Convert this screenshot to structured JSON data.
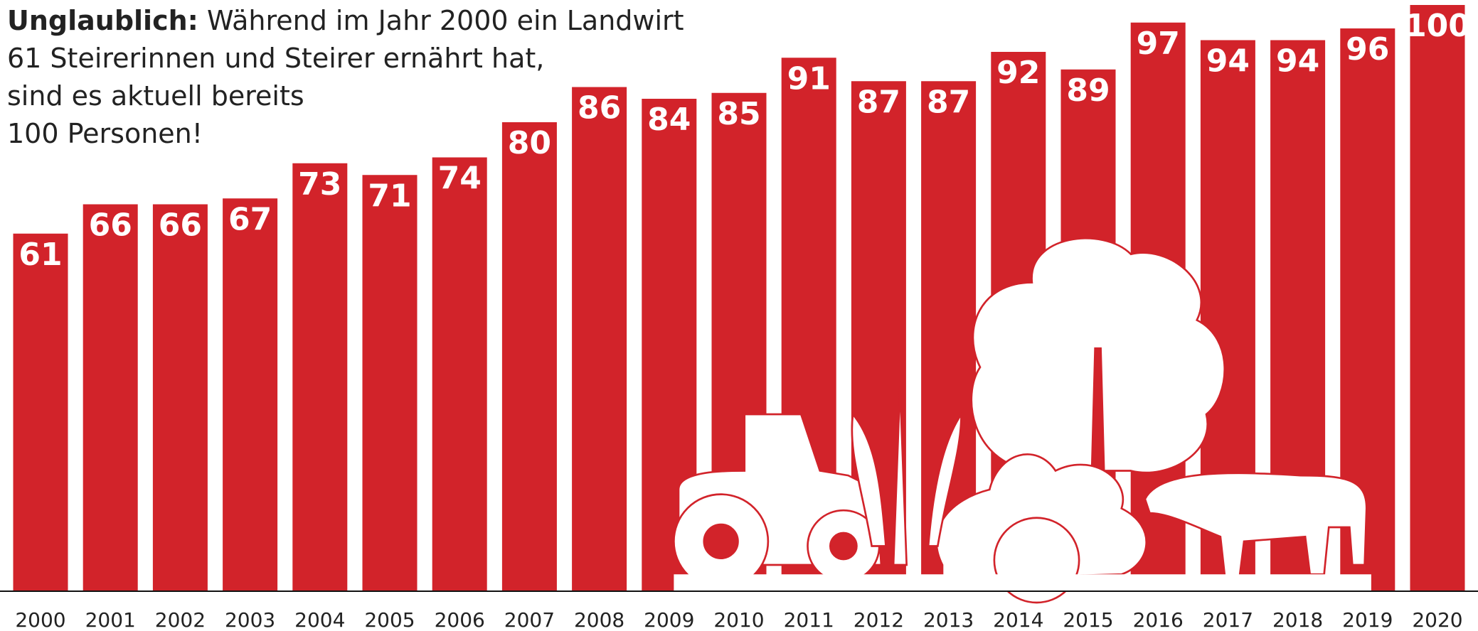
{
  "chart_data": {
    "type": "bar",
    "title": {
      "bold": "Unglaublich:",
      "lines": [
        "Während im Jahr 2000 ein Landwirt",
        "61 Steirerinnen und Steirer ernährt hat,",
        "sind es aktuell bereits",
        "100 Personen!"
      ]
    },
    "categories": [
      "2000",
      "2001",
      "2002",
      "2003",
      "2004",
      "2005",
      "2006",
      "2007",
      "2008",
      "2009",
      "2010",
      "2011",
      "2012",
      "2013",
      "2014",
      "2015",
      "2016",
      "2017",
      "2018",
      "2019",
      "2020"
    ],
    "values": [
      61,
      66,
      66,
      67,
      73,
      71,
      74,
      80,
      86,
      84,
      85,
      91,
      87,
      87,
      92,
      89,
      97,
      94,
      94,
      96,
      100
    ],
    "color": "#d2232a",
    "ylim": [
      0,
      100
    ]
  }
}
